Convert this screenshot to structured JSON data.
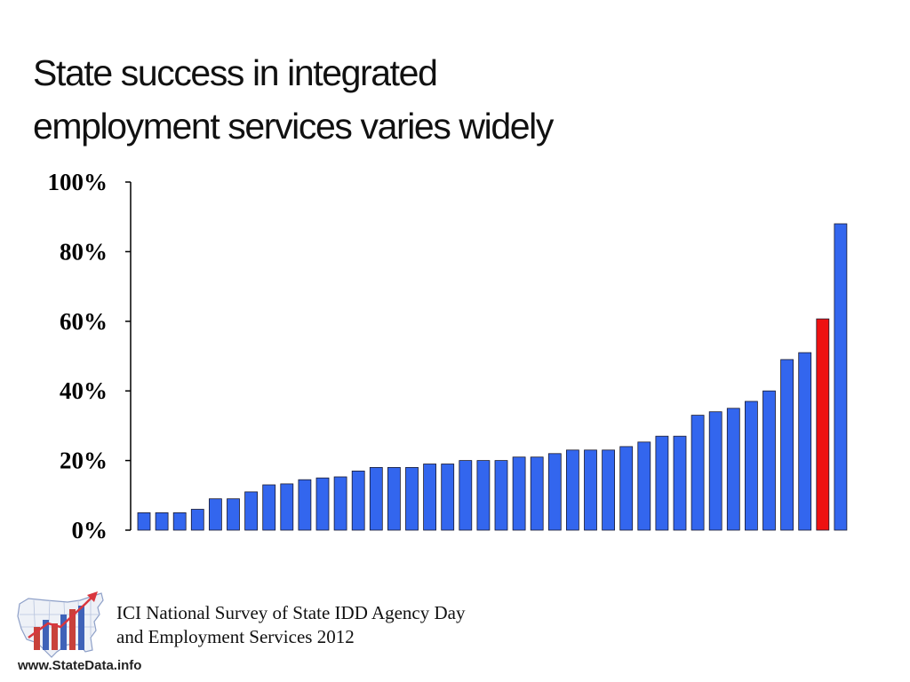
{
  "slide": {
    "title_line1": "State success in integrated",
    "title_line2": "employment services varies widely"
  },
  "chart_data": {
    "type": "bar",
    "title": "",
    "xlabel": "",
    "ylabel": "",
    "ylim": [
      0,
      100
    ],
    "y_ticks": [
      "0%",
      "20%",
      "40%",
      "60%",
      "80%",
      "100%"
    ],
    "y_tick_values": [
      0,
      20,
      40,
      60,
      80,
      100
    ],
    "grid": false,
    "legend": "none",
    "bar_color": "#3366ee",
    "highlight_color": "#ee1111",
    "highlight_index": 38,
    "values": [
      5,
      5,
      5,
      6,
      9,
      9,
      11,
      13,
      13.3,
      14.5,
      15,
      15.3,
      17,
      18,
      18,
      18,
      19,
      19,
      20,
      20,
      20,
      21,
      21,
      22,
      23,
      23,
      23,
      24,
      25.3,
      27,
      27,
      33,
      34,
      35,
      37,
      40,
      49,
      51,
      60.7,
      88
    ]
  },
  "footer": {
    "logo_icon": "us-map-bar-chart-logo",
    "site_url": "www.StateData.info",
    "source_line1": "ICI National Survey of State IDD Agency Day",
    "source_line2": "and Employment Services 2012"
  }
}
